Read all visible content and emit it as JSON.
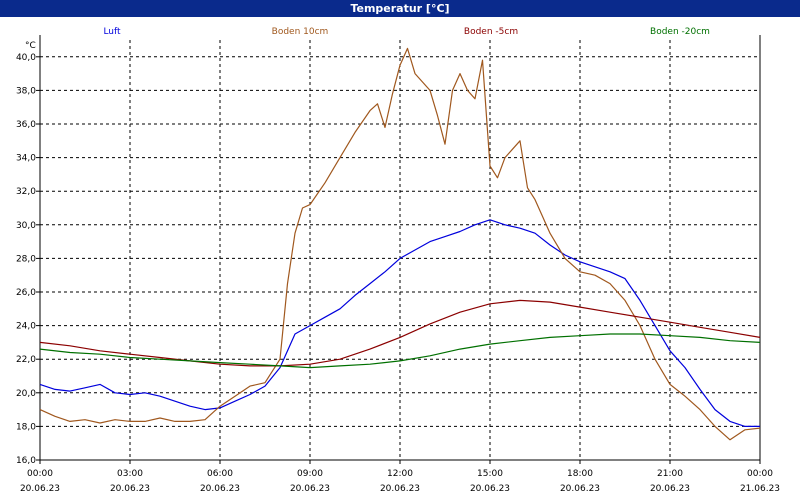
{
  "window": {
    "title": "Temperatur [°C]"
  },
  "colors": {
    "title_bg": "#0a2a8c",
    "grid": "#000000",
    "Luft": "#0000dd",
    "Boden 10cm": "#a0581e",
    "Boden -5cm": "#8b0000",
    "Boden -20cm": "#007000"
  },
  "chart_data": {
    "type": "line",
    "title": "Temperatur [°C]",
    "ylabel": "°C",
    "xlabel": "",
    "ylim": [
      16,
      41
    ],
    "yticks": [
      "16,0",
      "18,0",
      "20,0",
      "22,0",
      "24,0",
      "26,0",
      "28,0",
      "30,0",
      "32,0",
      "34,0",
      "36,0",
      "38,0",
      "40,0"
    ],
    "xticks": [
      {
        "time": "00:00",
        "date": "20.06.23"
      },
      {
        "time": "03:00",
        "date": "20.06.23"
      },
      {
        "time": "06:00",
        "date": "20.06.23"
      },
      {
        "time": "09:00",
        "date": "20.06.23"
      },
      {
        "time": "12:00",
        "date": "20.06.23"
      },
      {
        "time": "15:00",
        "date": "20.06.23"
      },
      {
        "time": "18:00",
        "date": "20.06.23"
      },
      {
        "time": "21:00",
        "date": "20.06.23"
      },
      {
        "time": "00:00",
        "date": "21.06.23"
      }
    ],
    "grid": true,
    "legend_position": "top",
    "series": [
      {
        "name": "Luft",
        "x": [
          0,
          0.5,
          1,
          1.5,
          2,
          2.5,
          3,
          3.5,
          4,
          4.5,
          5,
          5.5,
          6,
          6.5,
          7,
          7.5,
          8,
          8.5,
          9,
          9.5,
          10,
          10.5,
          11,
          11.5,
          12,
          12.5,
          13,
          13.5,
          14,
          14.5,
          15,
          15.5,
          16,
          16.5,
          17,
          17.5,
          18,
          18.5,
          19,
          19.5,
          20,
          20.5,
          21,
          21.5,
          22,
          22.5,
          23,
          23.5,
          24
        ],
        "y": [
          20.5,
          20.2,
          20.1,
          20.3,
          20.5,
          20.0,
          19.9,
          20.0,
          19.8,
          19.5,
          19.2,
          19.0,
          19.1,
          19.5,
          19.9,
          20.4,
          21.5,
          23.5,
          24.0,
          24.5,
          25.0,
          25.8,
          26.5,
          27.2,
          28.0,
          28.5,
          29.0,
          29.3,
          29.6,
          30.0,
          30.3,
          30.0,
          29.8,
          29.5,
          28.8,
          28.2,
          27.8,
          27.5,
          27.2,
          26.8,
          25.5,
          24.0,
          22.5,
          21.5,
          20.2,
          19.0,
          18.3,
          18.0,
          18.0
        ]
      },
      {
        "name": "Boden 10cm",
        "x": [
          0,
          0.5,
          1,
          1.5,
          2,
          2.5,
          3,
          3.5,
          4,
          4.5,
          5,
          5.5,
          6,
          6.5,
          7,
          7.5,
          8,
          8.25,
          8.5,
          8.75,
          9,
          9.5,
          10,
          10.5,
          11,
          11.25,
          11.5,
          11.75,
          12,
          12.25,
          12.5,
          12.75,
          13,
          13.25,
          13.5,
          13.75,
          14,
          14.25,
          14.5,
          14.75,
          15,
          15.25,
          15.5,
          15.75,
          16,
          16.25,
          16.5,
          16.75,
          17,
          17.5,
          18,
          18.5,
          19,
          19.5,
          20,
          20.5,
          21,
          21.5,
          22,
          22.5,
          23,
          23.5,
          24
        ],
        "y": [
          19.0,
          18.6,
          18.3,
          18.4,
          18.2,
          18.4,
          18.3,
          18.3,
          18.5,
          18.3,
          18.3,
          18.4,
          19.2,
          19.8,
          20.4,
          20.6,
          22.0,
          26.5,
          29.5,
          31.0,
          31.2,
          32.5,
          34.0,
          35.5,
          36.8,
          37.2,
          35.8,
          37.8,
          39.5,
          40.5,
          39.0,
          38.5,
          38.0,
          36.5,
          34.8,
          38.0,
          39.0,
          38.0,
          37.5,
          39.8,
          33.5,
          32.8,
          34.0,
          34.5,
          35.0,
          32.2,
          31.5,
          30.5,
          29.5,
          28.0,
          27.2,
          27.0,
          26.5,
          25.5,
          24.0,
          22.0,
          20.5,
          19.8,
          19.0,
          18.0,
          17.2,
          17.8,
          17.9
        ]
      },
      {
        "name": "Boden -5cm",
        "x": [
          0,
          1,
          2,
          3,
          4,
          5,
          6,
          7,
          8,
          9,
          10,
          11,
          12,
          13,
          14,
          15,
          16,
          17,
          18,
          19,
          20,
          21,
          22,
          23,
          24
        ],
        "y": [
          23.0,
          22.8,
          22.5,
          22.3,
          22.1,
          21.9,
          21.7,
          21.6,
          21.6,
          21.7,
          22.0,
          22.6,
          23.3,
          24.1,
          24.8,
          25.3,
          25.5,
          25.4,
          25.1,
          24.8,
          24.5,
          24.2,
          23.9,
          23.6,
          23.3
        ]
      },
      {
        "name": "Boden -20cm",
        "x": [
          0,
          1,
          2,
          3,
          4,
          5,
          6,
          7,
          8,
          9,
          10,
          11,
          12,
          13,
          14,
          15,
          16,
          17,
          18,
          19,
          20,
          21,
          22,
          23,
          24
        ],
        "y": [
          22.6,
          22.4,
          22.3,
          22.1,
          22.0,
          21.9,
          21.8,
          21.7,
          21.6,
          21.5,
          21.6,
          21.7,
          21.9,
          22.2,
          22.6,
          22.9,
          23.1,
          23.3,
          23.4,
          23.5,
          23.5,
          23.4,
          23.3,
          23.1,
          23.0
        ]
      }
    ]
  }
}
